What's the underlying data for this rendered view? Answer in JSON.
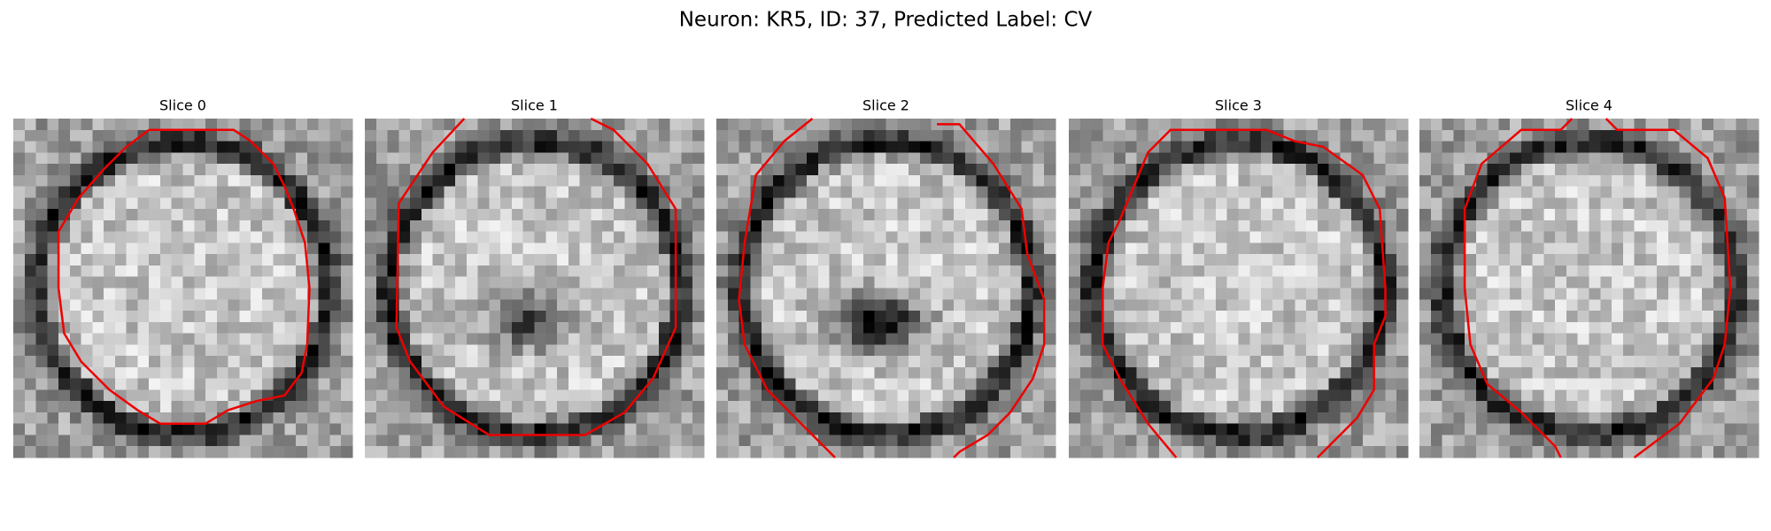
{
  "header": {
    "title": "Neuron: KR5, ID: 37, Predicted Label: CV"
  },
  "panels": [
    {
      "title": "Slice 0"
    },
    {
      "title": "Slice 1"
    },
    {
      "title": "Slice 2"
    },
    {
      "title": "Slice 3"
    },
    {
      "title": "Slice 4"
    }
  ]
}
